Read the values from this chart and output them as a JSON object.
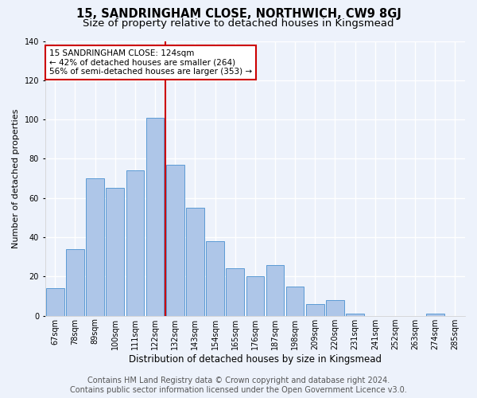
{
  "title": "15, SANDRINGHAM CLOSE, NORTHWICH, CW9 8GJ",
  "subtitle": "Size of property relative to detached houses in Kingsmead",
  "xlabel": "Distribution of detached houses by size in Kingsmead",
  "ylabel": "Number of detached properties",
  "categories": [
    "67sqm",
    "78sqm",
    "89sqm",
    "100sqm",
    "111sqm",
    "122sqm",
    "132sqm",
    "143sqm",
    "154sqm",
    "165sqm",
    "176sqm",
    "187sqm",
    "198sqm",
    "209sqm",
    "220sqm",
    "231sqm",
    "241sqm",
    "252sqm",
    "263sqm",
    "274sqm",
    "285sqm"
  ],
  "values": [
    14,
    34,
    70,
    65,
    74,
    101,
    77,
    55,
    38,
    24,
    20,
    26,
    15,
    6,
    8,
    1,
    0,
    0,
    0,
    1,
    0
  ],
  "bar_color": "#aec6e8",
  "bar_edge_color": "#5b9bd5",
  "vline_x_index": 5,
  "vline_color": "#cc0000",
  "annotation_text": "15 SANDRINGHAM CLOSE: 124sqm\n← 42% of detached houses are smaller (264)\n56% of semi-detached houses are larger (353) →",
  "annotation_box_color": "#ffffff",
  "annotation_box_edge": "#cc0000",
  "ylim": [
    0,
    140
  ],
  "yticks": [
    0,
    20,
    40,
    60,
    80,
    100,
    120,
    140
  ],
  "footer_line1": "Contains HM Land Registry data © Crown copyright and database right 2024.",
  "footer_line2": "Contains public sector information licensed under the Open Government Licence v3.0.",
  "bg_color": "#edf2fb",
  "plot_bg_color": "#edf2fb",
  "grid_color": "#ffffff",
  "title_fontsize": 10.5,
  "subtitle_fontsize": 9.5,
  "xlabel_fontsize": 8.5,
  "ylabel_fontsize": 8,
  "tick_fontsize": 7,
  "footer_fontsize": 7,
  "annotation_fontsize": 7.5
}
